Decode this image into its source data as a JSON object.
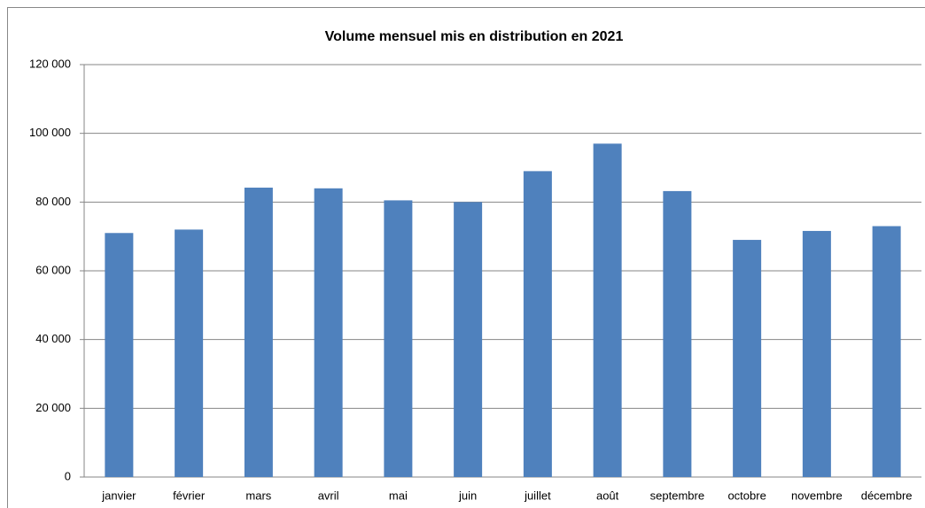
{
  "chart_data": {
    "type": "bar",
    "title": "Volume mensuel mis en distribution en 2021",
    "categories": [
      "janvier",
      "février",
      "mars",
      "avril",
      "mai",
      "juin",
      "juillet",
      "août",
      "septembre",
      "octobre",
      "novembre",
      "décembre"
    ],
    "values": [
      71000,
      72000,
      84200,
      84000,
      80500,
      80000,
      89000,
      97000,
      83200,
      69000,
      71600,
      73000
    ],
    "color": "#4f81bd",
    "ylim": [
      0,
      120000
    ],
    "yticks": [
      0,
      {
        "value": 20000,
        "label": "20 000"
      },
      {
        "value": 40000,
        "label": "40 000"
      },
      {
        "value": 60000,
        "label": "60 000"
      },
      {
        "value": 80000,
        "label": "80 000"
      },
      {
        "value": 100000,
        "label": "100 000"
      },
      {
        "value": 120000,
        "label": "120 000"
      }
    ],
    "grid": true
  }
}
